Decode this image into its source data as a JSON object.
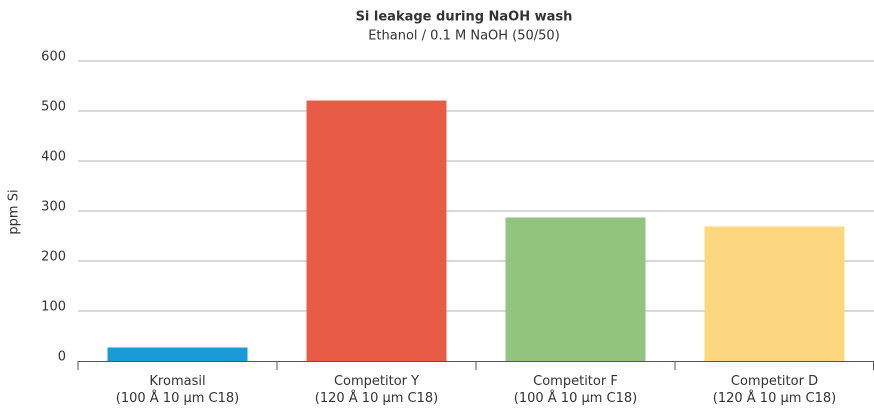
{
  "chart_data": {
    "type": "bar",
    "title": "Si leakage during NaOH wash",
    "subtitle": "Ethanol / 0.1 M NaOH (50/50)",
    "y_label": "ppm Si",
    "categories": [
      [
        "Kromasil",
        "(100 Å 10 µm C18)"
      ],
      [
        "Competitor Y",
        "(120 Å 10 µm C18)"
      ],
      [
        "Competitor F",
        "(100 Å 10 µm C18)"
      ],
      [
        "Competitor D",
        "(120 Å 10 µm C18)"
      ]
    ],
    "values": [
      27,
      521,
      287,
      269
    ],
    "colors": [
      "#1a9ad6",
      "#e85c45",
      "#93c47d",
      "#fcd77f"
    ],
    "ylim": [
      0,
      600
    ],
    "yticks": [
      0,
      100,
      200,
      300,
      400,
      500,
      600
    ],
    "grid": true
  }
}
